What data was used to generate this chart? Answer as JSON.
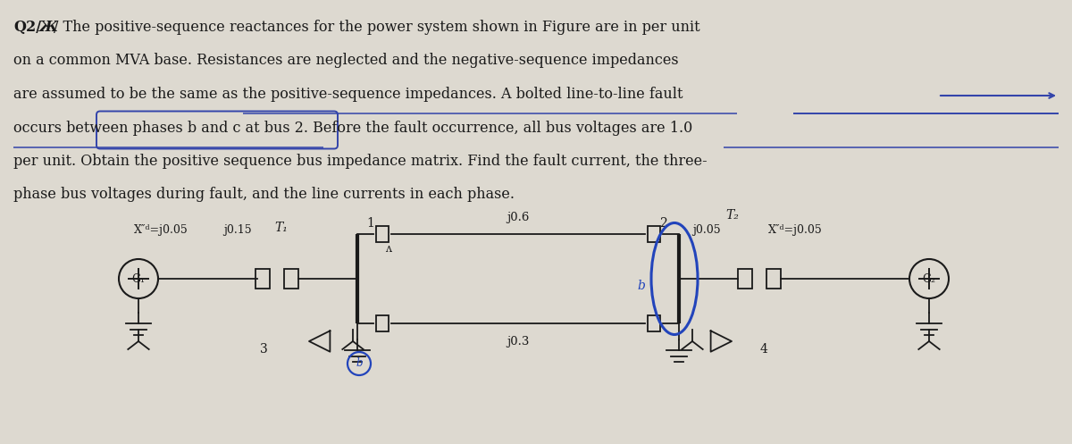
{
  "bg_color": "#ddd9d0",
  "text_color": "#1a1a1a",
  "diagram": {
    "T1_label": "T₁",
    "T2_label": "T₂",
    "bus1_label": "1",
    "bus2_label": "2",
    "bus3_label": "3",
    "bus4_label": "4",
    "G1_label": "G₁",
    "G2_label": "G₂",
    "Xd1_label": "X″ᵈ=j0.05",
    "Xd2_label": "X″ᵈ=j0.05",
    "jT1_label": "j0.15",
    "jT2_label": "j0.05",
    "jline1_label": "j0.6",
    "jline2_label": "j0.3",
    "j05_right": "j0.05",
    "fault_label": "b",
    "a_label": "a"
  },
  "para_lines": [
    "Q2/Ж/ The positive-sequence reactances for the power system shown in Figure are in per unit",
    "on a common MVA base. Resistances are neglected and the negative-sequence impedances",
    "are assumed to be the same as the positive-sequence impedances. A bolted line-to-line fault",
    "occurs between phases b and c at bus 2. Before the fault occurrence, all bus voltages are 1.0",
    "per unit. Obtain the positive sequence bus impedance matrix. Find the fault current, the three-",
    "phase bus voltages during fault, and the line currents in each phase."
  ]
}
